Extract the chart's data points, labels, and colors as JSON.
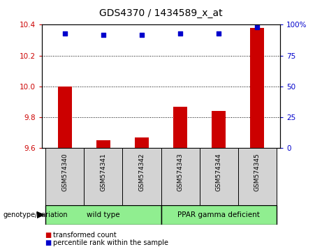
{
  "title": "GDS4370 / 1434589_x_at",
  "samples": [
    "GSM574340",
    "GSM574341",
    "GSM574342",
    "GSM574343",
    "GSM574344",
    "GSM574345"
  ],
  "transformed_counts": [
    10.0,
    9.65,
    9.67,
    9.87,
    9.84,
    10.38
  ],
  "percentile_ranks": [
    93,
    92,
    92,
    93,
    93,
    98
  ],
  "groups": [
    {
      "label": "wild type",
      "indices": [
        0,
        1,
        2
      ],
      "color": "#90ee90"
    },
    {
      "label": "PPAR gamma deficient",
      "indices": [
        3,
        4,
        5
      ],
      "color": "#90ee90"
    }
  ],
  "ylim_left": [
    9.6,
    10.4
  ],
  "ylim_right": [
    0,
    100
  ],
  "yticks_left": [
    9.6,
    9.8,
    10.0,
    10.2,
    10.4
  ],
  "yticks_right": [
    0,
    25,
    50,
    75,
    100
  ],
  "bar_color": "#cc0000",
  "dot_color": "#0000cc",
  "bar_bottom": 9.6,
  "legend_red_label": "transformed count",
  "legend_blue_label": "percentile rank within the sample",
  "genotype_label": "genotype/variation",
  "sample_box_color": "#d3d3d3",
  "plot_bg": "#ffffff",
  "tick_color_left": "#cc0000",
  "tick_color_right": "#0000cc",
  "title_fontsize": 10,
  "bar_width": 0.35
}
